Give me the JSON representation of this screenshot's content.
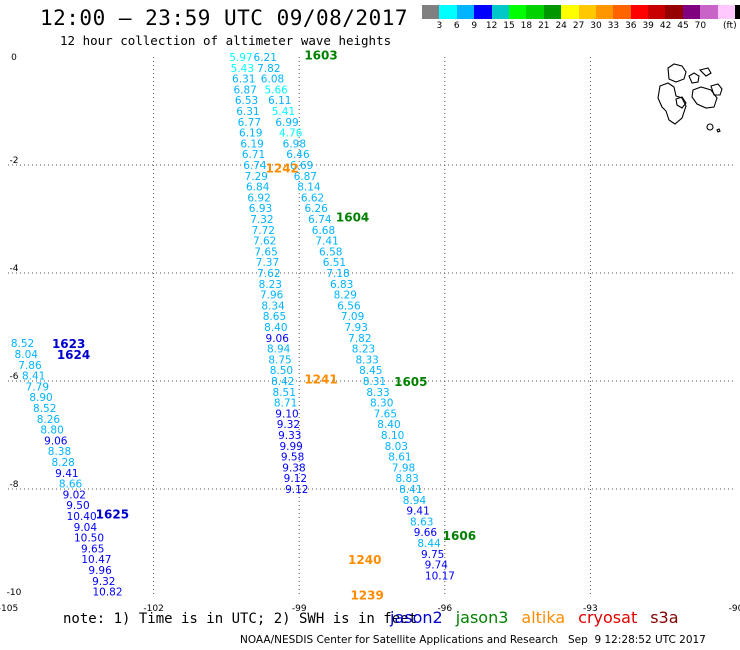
{
  "header": {
    "title": "12:00 — 23:59 UTC 09/08/2017",
    "subtitle": "12 hour collection of altimeter wave heights"
  },
  "colorbar": {
    "colors": [
      "#808080",
      "#00ffff",
      "#00b4ff",
      "#0000ff",
      "#00c8c8",
      "#00ff00",
      "#00d200",
      "#009600",
      "#ffff00",
      "#ffc800",
      "#ff9600",
      "#ff6400",
      "#ff0000",
      "#c80000",
      "#960000",
      "#800080",
      "#c864c8",
      "#ffc8ff",
      "#000000"
    ],
    "labels": [
      "3",
      "6",
      "9",
      "12",
      "15",
      "18",
      "21",
      "24",
      "27",
      "30",
      "33",
      "36",
      "39",
      "42",
      "45",
      "70",
      "(ft)"
    ]
  },
  "map": {
    "x_ticks": [
      "-105",
      "-102",
      "-99",
      "-96",
      "-93",
      "-90"
    ],
    "y_ticks": [
      "0",
      "-2",
      "-4",
      "-6",
      "-8",
      "-10"
    ],
    "lon_range": [
      -105,
      -90
    ],
    "lat_range": [
      0,
      -10
    ],
    "islands": "galapagos"
  },
  "pass_labels": [
    {
      "text": "1603",
      "lon": -98.55,
      "lat": 0.05,
      "color": "#008000"
    },
    {
      "text": "1242",
      "lon": -99.35,
      "lat": -2.05,
      "color": "#ff8c00"
    },
    {
      "text": "1604",
      "lon": -97.9,
      "lat": -2.95,
      "color": "#008000"
    },
    {
      "text": "1623",
      "lon": -103.75,
      "lat": -5.3,
      "color": "#0000cd"
    },
    {
      "text": "1624",
      "lon": -103.65,
      "lat": -5.5,
      "color": "#0000cd"
    },
    {
      "text": "1241",
      "lon": -98.55,
      "lat": -5.95,
      "color": "#ff8c00"
    },
    {
      "text": "1605",
      "lon": -96.7,
      "lat": -6.0,
      "color": "#008000"
    },
    {
      "text": "1625",
      "lon": -102.85,
      "lat": -8.45,
      "color": "#0000cd"
    },
    {
      "text": "1606",
      "lon": -95.7,
      "lat": -8.85,
      "color": "#008000"
    },
    {
      "text": "1240",
      "lon": -97.65,
      "lat": -9.3,
      "color": "#ff8c00"
    },
    {
      "text": "1239",
      "lon": -97.6,
      "lat": -9.95,
      "color": "#ff8c00"
    }
  ],
  "tracks": [
    {
      "name": "track-a",
      "lon_start": -100.2,
      "lon_end": -99.05,
      "lat_start": 0.0,
      "dlat": -0.2,
      "values": [
        "5.97",
        "5.43",
        "6.31",
        "6.87",
        "6.53",
        "6.31",
        "6.77",
        "6.19",
        "6.19",
        "6.71",
        "6.74",
        "7.29",
        "6.84",
        "6.92",
        "6.93",
        "7.32",
        "7.72",
        "7.62",
        "7.65",
        "7.37",
        "7.62",
        "8.23",
        "7.96",
        "8.34",
        "8.65",
        "8.40",
        "9.06",
        "8.94",
        "8.75",
        "8.50",
        "8.42",
        "8.51",
        "8.71",
        "9.10",
        "9.32",
        "9.33",
        "9.99",
        "9.58",
        "9.38",
        "9.12",
        "9.12"
      ]
    },
    {
      "name": "track-b",
      "lon_start": -99.7,
      "lon_end": -96.1,
      "lat_start": 0.0,
      "dlat": -0.2,
      "values": [
        "6.21",
        "7.82",
        "6.08",
        "5.66",
        "6.11",
        "5.41",
        "6.99",
        "4.76",
        "6.98",
        "6.46",
        "6.69",
        "6.87",
        "8.14",
        "6.62",
        "6.26",
        "6.74",
        "6.68",
        "7.41",
        "6.58",
        "6.51",
        "7.18",
        "6.83",
        "8.29",
        "6.56",
        "7.09",
        "7.93",
        "7.82",
        "8.23",
        "8.33",
        "8.45",
        "8.31",
        "8.33",
        "8.30",
        "7.65",
        "8.40",
        "8.10",
        "8.03",
        "8.61",
        "7.98",
        "8.83",
        "8.41",
        "8.94",
        "9.41",
        "8.63",
        "9.66",
        "8.44",
        "9.75",
        "9.74",
        "10.17"
      ]
    },
    {
      "name": "track-c",
      "lon_start": -104.7,
      "lon_end": -102.95,
      "lat_start": -5.3,
      "dlat": -0.2,
      "values": [
        "8.52",
        "8.04",
        "7.86",
        "8.41",
        "7.79",
        "8.90",
        "8.52",
        "8.26",
        "8.80",
        "9.06",
        "8.38",
        "8.28",
        "9.41",
        "8.66",
        "9.02",
        "9.50",
        "10.40",
        "9.04",
        "10.50",
        "9.65",
        "10.47",
        "9.96",
        "9.32",
        "10.82"
      ]
    }
  ],
  "note": "note: 1) Time is in UTC; 2) SWH is in feet",
  "legend": [
    {
      "label": "jason2",
      "color": "#0000cd"
    },
    {
      "label": "jason3",
      "color": "#008000"
    },
    {
      "label": "altika",
      "color": "#ff8c00"
    },
    {
      "label": "cryosat",
      "color": "#e00000"
    },
    {
      "label": "s3a",
      "color": "#800000"
    }
  ],
  "footer": "NOAA/NESDIS Center for Satellite Applications and Research   Sep  9 12:28:52 UTC 2017"
}
